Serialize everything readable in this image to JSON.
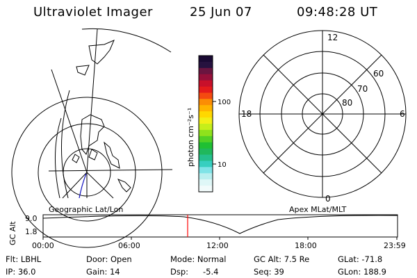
{
  "header": {
    "instrument": "Ultraviolet Imager",
    "date": "25 Jun 07",
    "time": "09:48:28 UT"
  },
  "panels": {
    "left_label": "Geographic Lat/Lon",
    "right_label": "Apex MLat/MLT"
  },
  "colorbar": {
    "unit_label": "photon cm⁻²s⁻¹",
    "ticks": [
      "100",
      "10"
    ],
    "colors": [
      "#1a0a33",
      "#26123f",
      "#6a1540",
      "#96103a",
      "#c8102a",
      "#e41b1b",
      "#f44a10",
      "#fb8d05",
      "#ffb400",
      "#ffd800",
      "#f2ef17",
      "#c6ee1a",
      "#8fe21c",
      "#52d125",
      "#1fc033",
      "#20b85c",
      "#25c08d",
      "#37cfc0",
      "#7fe3e7",
      "#b9efef",
      "#dff7f7",
      "#f2fbfb"
    ]
  },
  "polar": {
    "mlt_labels": {
      "top": "12",
      "left": "18",
      "right": "6",
      "bottom": "0"
    },
    "lat_labels": [
      "60",
      "70",
      "80"
    ]
  },
  "altitude_strip": {
    "ylabel": "GC Alt",
    "yticks": [
      "9.0",
      "1.8"
    ],
    "xticks": [
      "00:00",
      "06:00",
      "12:00",
      "18:00",
      "23:59"
    ],
    "marker_time": "09:48",
    "marker_color": "#ff0000"
  },
  "status": {
    "flt": "Flt: LBHL",
    "ip": "IP: 36.0",
    "door": "Door: Open",
    "gain": "Gain: 14",
    "mode": "Mode: Normal",
    "dsp": "Dsp:",
    "dsp_value": "-5.4",
    "gcalt": "GC Alt: 7.5 Re",
    "seq": "Seq: 39",
    "glat": "GLat: -71.8",
    "glon": "GLon: 188.9"
  }
}
